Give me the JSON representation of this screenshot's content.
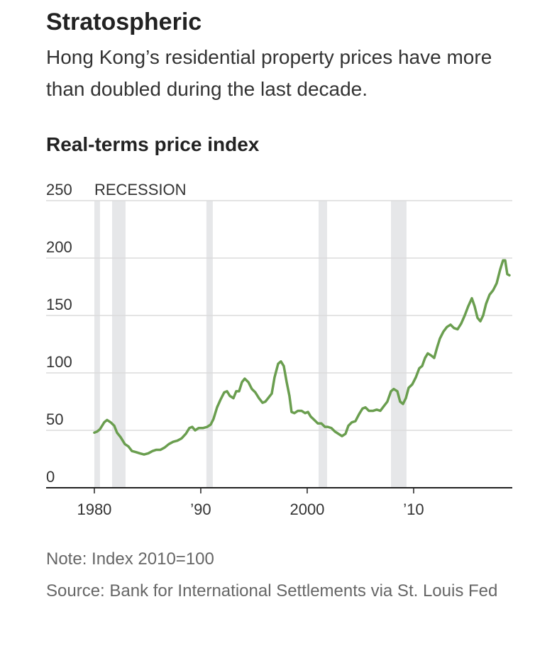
{
  "chart_data": {
    "type": "line",
    "title": "Stratospheric",
    "subtitle": "Hong Kong’s residential property prices have more than doubled during the last decade.",
    "y_axis_title": "Real-terms price index",
    "note": "Note: Index 2010=100",
    "source": "Source: Bank for International Settlements via St. Louis Fed",
    "recession_label": "RECESSION",
    "recessions": [
      [
        1980.0,
        1980.53
      ],
      [
        1981.67,
        1982.93
      ],
      [
        1990.53,
        1991.13
      ],
      [
        2001.07,
        2001.87
      ],
      [
        2007.87,
        2009.33
      ]
    ],
    "recession_color": "#e6e7e9",
    "xlim": [
      1975.47,
      2019.27
    ],
    "xticks": [
      1980,
      {
        "value": 1990,
        "label": "’90"
      },
      2000,
      {
        "value": 2010,
        "label": "’10"
      }
    ],
    "ylim": [
      0,
      250
    ],
    "yticks": [
      0,
      50,
      100,
      150,
      200,
      250
    ],
    "grid": true,
    "series": [
      {
        "name": "Real-terms price index",
        "color": "#6a9e4f",
        "x": [
          1980.0,
          1980.27,
          1980.53,
          1980.93,
          1981.2,
          1981.53,
          1981.87,
          1982.13,
          1982.47,
          1982.87,
          1983.2,
          1983.53,
          1983.93,
          1984.27,
          1984.67,
          1985.07,
          1985.47,
          1985.8,
          1986.2,
          1986.6,
          1987.0,
          1987.4,
          1987.8,
          1988.2,
          1988.6,
          1988.93,
          1989.2,
          1989.47,
          1989.8,
          1990.2,
          1990.6,
          1990.93,
          1991.2,
          1991.53,
          1991.87,
          1992.2,
          1992.47,
          1992.73,
          1993.07,
          1993.33,
          1993.6,
          1993.87,
          1994.13,
          1994.47,
          1994.8,
          1995.13,
          1995.47,
          1995.8,
          1996.07,
          1996.33,
          1996.67,
          1996.93,
          1997.27,
          1997.53,
          1997.8,
          1998.07,
          1998.33,
          1998.53,
          1998.8,
          1999.13,
          1999.47,
          1999.8,
          2000.07,
          2000.33,
          2000.67,
          2001.0,
          2001.33,
          2001.67,
          2001.93,
          2002.27,
          2002.6,
          2002.93,
          2003.27,
          2003.6,
          2003.87,
          2004.2,
          2004.53,
          2004.87,
          2005.2,
          2005.47,
          2005.8,
          2006.2,
          2006.53,
          2006.87,
          2007.2,
          2007.53,
          2007.87,
          2008.13,
          2008.47,
          2008.73,
          2009.0,
          2009.27,
          2009.53,
          2009.87,
          2010.2,
          2010.53,
          2010.8,
          2011.07,
          2011.33,
          2011.67,
          2011.93,
          2012.2,
          2012.47,
          2012.8,
          2013.13,
          2013.47,
          2013.8,
          2014.13,
          2014.47,
          2014.8,
          2015.13,
          2015.47,
          2015.73,
          2016.0,
          2016.27,
          2016.53,
          2016.8,
          2017.13,
          2017.47,
          2017.8,
          2018.13,
          2018.4,
          2018.6,
          2018.8,
          2019.0
        ],
        "values": [
          48,
          49,
          51,
          57,
          59,
          57,
          54,
          48,
          44,
          38,
          36,
          32,
          31,
          30,
          29,
          30,
          32,
          33,
          33,
          35,
          38,
          40,
          41,
          43,
          47,
          52,
          53,
          50,
          52,
          52,
          53,
          55,
          60,
          70,
          77,
          83,
          84,
          80,
          78,
          84,
          84,
          92,
          95,
          92,
          86,
          83,
          78,
          74,
          75,
          78,
          82,
          96,
          108,
          110,
          106,
          92,
          80,
          66,
          65,
          67,
          67,
          65,
          66,
          62,
          59,
          56,
          56,
          53,
          53,
          52,
          49,
          47,
          45,
          47,
          54,
          57,
          58,
          64,
          69,
          70,
          67,
          67,
          68,
          67,
          71,
          75,
          84,
          86,
          84,
          75,
          73,
          78,
          87,
          90,
          96,
          104,
          106,
          113,
          117,
          115,
          113,
          122,
          130,
          136,
          140,
          142,
          139,
          138,
          143,
          150,
          158,
          165,
          158,
          148,
          145,
          150,
          160,
          168,
          172,
          178,
          190,
          198,
          198,
          186,
          185
        ]
      }
    ]
  }
}
